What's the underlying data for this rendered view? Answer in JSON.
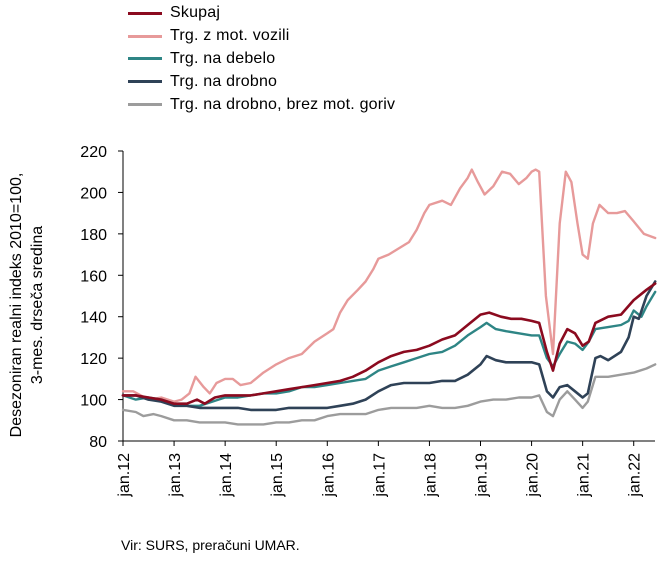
{
  "chart_data": {
    "type": "line",
    "title": "",
    "ylabel_lines": [
      "Desezoniran realni indeks 2010=100,",
      "3-mes. drseča sredina"
    ],
    "xlabel": "",
    "ylim": [
      80,
      220
    ],
    "yticks": [
      80,
      100,
      120,
      140,
      160,
      180,
      200,
      220
    ],
    "x_range": [
      2012.0,
      2022.4167
    ],
    "xticks": [
      {
        "label": "jan.12",
        "x": 2012
      },
      {
        "label": "jan.13",
        "x": 2013
      },
      {
        "label": "jan.14",
        "x": 2014
      },
      {
        "label": "jan.15",
        "x": 2015
      },
      {
        "label": "jan.16",
        "x": 2016
      },
      {
        "label": "jan.17",
        "x": 2017
      },
      {
        "label": "jan.18",
        "x": 2018
      },
      {
        "label": "jan.19",
        "x": 2019
      },
      {
        "label": "jan.20",
        "x": 2020
      },
      {
        "label": "jan.21",
        "x": 2021
      },
      {
        "label": "jan.22",
        "x": 2022
      }
    ],
    "grid": false,
    "legend_position": "top-left",
    "series": [
      {
        "name": "Skupaj",
        "color": "#8b0a1f",
        "width": 2.6,
        "points": [
          [
            2012.0,
            102
          ],
          [
            2012.25,
            102
          ],
          [
            2012.5,
            101
          ],
          [
            2012.75,
            100
          ],
          [
            2013.0,
            98
          ],
          [
            2013.25,
            98
          ],
          [
            2013.45,
            100
          ],
          [
            2013.6,
            98
          ],
          [
            2013.8,
            101
          ],
          [
            2014.0,
            102
          ],
          [
            2014.25,
            102
          ],
          [
            2014.5,
            102
          ],
          [
            2014.75,
            103
          ],
          [
            2015.0,
            104
          ],
          [
            2015.25,
            105
          ],
          [
            2015.5,
            106
          ],
          [
            2015.75,
            107
          ],
          [
            2016.0,
            108
          ],
          [
            2016.25,
            109
          ],
          [
            2016.5,
            111
          ],
          [
            2016.75,
            114
          ],
          [
            2017.0,
            118
          ],
          [
            2017.25,
            121
          ],
          [
            2017.5,
            123
          ],
          [
            2017.75,
            124
          ],
          [
            2018.0,
            126
          ],
          [
            2018.25,
            129
          ],
          [
            2018.5,
            131
          ],
          [
            2018.75,
            136
          ],
          [
            2019.0,
            141
          ],
          [
            2019.17,
            142
          ],
          [
            2019.4,
            140
          ],
          [
            2019.6,
            139
          ],
          [
            2019.8,
            139
          ],
          [
            2020.0,
            138
          ],
          [
            2020.15,
            137
          ],
          [
            2020.3,
            123
          ],
          [
            2020.42,
            114
          ],
          [
            2020.55,
            127
          ],
          [
            2020.7,
            134
          ],
          [
            2020.85,
            132
          ],
          [
            2021.0,
            126
          ],
          [
            2021.12,
            128
          ],
          [
            2021.25,
            137
          ],
          [
            2021.5,
            140
          ],
          [
            2021.75,
            141
          ],
          [
            2022.0,
            148
          ],
          [
            2022.25,
            153
          ],
          [
            2022.42,
            156
          ]
        ]
      },
      {
        "name": "Trg. z mot. vozili",
        "color": "#e79a9a",
        "width": 2.4,
        "points": [
          [
            2012.0,
            104
          ],
          [
            2012.2,
            104
          ],
          [
            2012.35,
            102
          ],
          [
            2012.5,
            100
          ],
          [
            2012.75,
            101
          ],
          [
            2013.0,
            99
          ],
          [
            2013.15,
            100
          ],
          [
            2013.3,
            103
          ],
          [
            2013.42,
            111
          ],
          [
            2013.58,
            106
          ],
          [
            2013.7,
            103
          ],
          [
            2013.83,
            108
          ],
          [
            2014.0,
            110
          ],
          [
            2014.15,
            110
          ],
          [
            2014.3,
            107
          ],
          [
            2014.5,
            108
          ],
          [
            2014.75,
            113
          ],
          [
            2015.0,
            117
          ],
          [
            2015.25,
            120
          ],
          [
            2015.5,
            122
          ],
          [
            2015.75,
            128
          ],
          [
            2016.0,
            132
          ],
          [
            2016.12,
            134
          ],
          [
            2016.25,
            142
          ],
          [
            2016.4,
            148
          ],
          [
            2016.6,
            153
          ],
          [
            2016.75,
            157
          ],
          [
            2016.9,
            163
          ],
          [
            2017.0,
            168
          ],
          [
            2017.2,
            170
          ],
          [
            2017.4,
            173
          ],
          [
            2017.6,
            176
          ],
          [
            2017.75,
            182
          ],
          [
            2017.9,
            190
          ],
          [
            2018.0,
            194
          ],
          [
            2018.25,
            196
          ],
          [
            2018.42,
            194
          ],
          [
            2018.6,
            202
          ],
          [
            2018.75,
            207
          ],
          [
            2018.83,
            211
          ],
          [
            2018.95,
            205
          ],
          [
            2019.08,
            199
          ],
          [
            2019.25,
            203
          ],
          [
            2019.42,
            210
          ],
          [
            2019.58,
            209
          ],
          [
            2019.75,
            204
          ],
          [
            2019.9,
            207
          ],
          [
            2020.0,
            210
          ],
          [
            2020.08,
            211
          ],
          [
            2020.15,
            210
          ],
          [
            2020.28,
            150
          ],
          [
            2020.42,
            122
          ],
          [
            2020.55,
            185
          ],
          [
            2020.67,
            210
          ],
          [
            2020.78,
            205
          ],
          [
            2020.9,
            185
          ],
          [
            2021.0,
            170
          ],
          [
            2021.1,
            168
          ],
          [
            2021.2,
            185
          ],
          [
            2021.33,
            194
          ],
          [
            2021.5,
            190
          ],
          [
            2021.67,
            190
          ],
          [
            2021.83,
            191
          ],
          [
            2022.0,
            186
          ],
          [
            2022.2,
            180
          ],
          [
            2022.42,
            178
          ]
        ]
      },
      {
        "name": "Trg. na debelo",
        "color": "#2e8585",
        "width": 2.4,
        "points": [
          [
            2012.0,
            102
          ],
          [
            2012.25,
            100
          ],
          [
            2012.5,
            101
          ],
          [
            2012.75,
            100
          ],
          [
            2013.0,
            98
          ],
          [
            2013.25,
            97
          ],
          [
            2013.5,
            97
          ],
          [
            2013.75,
            99
          ],
          [
            2014.0,
            101
          ],
          [
            2014.25,
            101
          ],
          [
            2014.5,
            102
          ],
          [
            2014.75,
            103
          ],
          [
            2015.0,
            103
          ],
          [
            2015.25,
            104
          ],
          [
            2015.5,
            106
          ],
          [
            2015.75,
            106
          ],
          [
            2016.0,
            107
          ],
          [
            2016.25,
            108
          ],
          [
            2016.5,
            109
          ],
          [
            2016.75,
            110
          ],
          [
            2017.0,
            114
          ],
          [
            2017.25,
            116
          ],
          [
            2017.5,
            118
          ],
          [
            2017.75,
            120
          ],
          [
            2018.0,
            122
          ],
          [
            2018.25,
            123
          ],
          [
            2018.5,
            126
          ],
          [
            2018.75,
            131
          ],
          [
            2019.0,
            135
          ],
          [
            2019.12,
            137
          ],
          [
            2019.3,
            134
          ],
          [
            2019.5,
            133
          ],
          [
            2019.75,
            132
          ],
          [
            2020.0,
            131
          ],
          [
            2020.15,
            131
          ],
          [
            2020.3,
            120
          ],
          [
            2020.42,
            116
          ],
          [
            2020.55,
            122
          ],
          [
            2020.7,
            128
          ],
          [
            2020.85,
            127
          ],
          [
            2021.0,
            124
          ],
          [
            2021.12,
            128
          ],
          [
            2021.25,
            134
          ],
          [
            2021.5,
            135
          ],
          [
            2021.75,
            136
          ],
          [
            2021.9,
            138
          ],
          [
            2022.0,
            143
          ],
          [
            2022.15,
            140
          ],
          [
            2022.25,
            145
          ],
          [
            2022.42,
            152
          ]
        ]
      },
      {
        "name": "Trg. na drobno",
        "color": "#2f4257",
        "width": 2.6,
        "points": [
          [
            2012.0,
            102
          ],
          [
            2012.25,
            102
          ],
          [
            2012.5,
            100
          ],
          [
            2012.75,
            99
          ],
          [
            2013.0,
            97
          ],
          [
            2013.25,
            97
          ],
          [
            2013.5,
            96
          ],
          [
            2013.75,
            96
          ],
          [
            2014.0,
            96
          ],
          [
            2014.25,
            96
          ],
          [
            2014.5,
            95
          ],
          [
            2014.75,
            95
          ],
          [
            2015.0,
            95
          ],
          [
            2015.25,
            96
          ],
          [
            2015.5,
            96
          ],
          [
            2015.75,
            96
          ],
          [
            2016.0,
            96
          ],
          [
            2016.25,
            97
          ],
          [
            2016.5,
            98
          ],
          [
            2016.75,
            100
          ],
          [
            2017.0,
            104
          ],
          [
            2017.25,
            107
          ],
          [
            2017.5,
            108
          ],
          [
            2017.75,
            108
          ],
          [
            2018.0,
            108
          ],
          [
            2018.25,
            109
          ],
          [
            2018.5,
            109
          ],
          [
            2018.75,
            112
          ],
          [
            2019.0,
            117
          ],
          [
            2019.12,
            121
          ],
          [
            2019.3,
            119
          ],
          [
            2019.5,
            118
          ],
          [
            2019.75,
            118
          ],
          [
            2020.0,
            118
          ],
          [
            2020.15,
            117
          ],
          [
            2020.3,
            104
          ],
          [
            2020.42,
            101
          ],
          [
            2020.55,
            106
          ],
          [
            2020.7,
            107
          ],
          [
            2020.85,
            104
          ],
          [
            2021.0,
            101
          ],
          [
            2021.1,
            103
          ],
          [
            2021.25,
            120
          ],
          [
            2021.35,
            121
          ],
          [
            2021.5,
            119
          ],
          [
            2021.75,
            123
          ],
          [
            2021.9,
            130
          ],
          [
            2022.0,
            140
          ],
          [
            2022.1,
            139
          ],
          [
            2022.25,
            150
          ],
          [
            2022.42,
            157
          ]
        ]
      },
      {
        "name": "Trg. na drobno, brez mot. goriv",
        "color": "#9c9c9c",
        "width": 2.4,
        "points": [
          [
            2012.0,
            95
          ],
          [
            2012.25,
            94
          ],
          [
            2012.4,
            92
          ],
          [
            2012.6,
            93
          ],
          [
            2012.75,
            92
          ],
          [
            2013.0,
            90
          ],
          [
            2013.25,
            90
          ],
          [
            2013.5,
            89
          ],
          [
            2013.75,
            89
          ],
          [
            2014.0,
            89
          ],
          [
            2014.25,
            88
          ],
          [
            2014.5,
            88
          ],
          [
            2014.75,
            88
          ],
          [
            2015.0,
            89
          ],
          [
            2015.25,
            89
          ],
          [
            2015.5,
            90
          ],
          [
            2015.75,
            90
          ],
          [
            2016.0,
            92
          ],
          [
            2016.25,
            93
          ],
          [
            2016.5,
            93
          ],
          [
            2016.75,
            93
          ],
          [
            2017.0,
            95
          ],
          [
            2017.25,
            96
          ],
          [
            2017.5,
            96
          ],
          [
            2017.75,
            96
          ],
          [
            2018.0,
            97
          ],
          [
            2018.25,
            96
          ],
          [
            2018.5,
            96
          ],
          [
            2018.75,
            97
          ],
          [
            2019.0,
            99
          ],
          [
            2019.25,
            100
          ],
          [
            2019.5,
            100
          ],
          [
            2019.75,
            101
          ],
          [
            2020.0,
            101
          ],
          [
            2020.15,
            102
          ],
          [
            2020.3,
            94
          ],
          [
            2020.42,
            92
          ],
          [
            2020.55,
            100
          ],
          [
            2020.7,
            104
          ],
          [
            2020.85,
            100
          ],
          [
            2021.0,
            96
          ],
          [
            2021.1,
            99
          ],
          [
            2021.25,
            111
          ],
          [
            2021.5,
            111
          ],
          [
            2021.75,
            112
          ],
          [
            2022.0,
            113
          ],
          [
            2022.25,
            115
          ],
          [
            2022.42,
            117
          ]
        ]
      }
    ]
  },
  "source": "Vir: SURS, preračuni UMAR."
}
